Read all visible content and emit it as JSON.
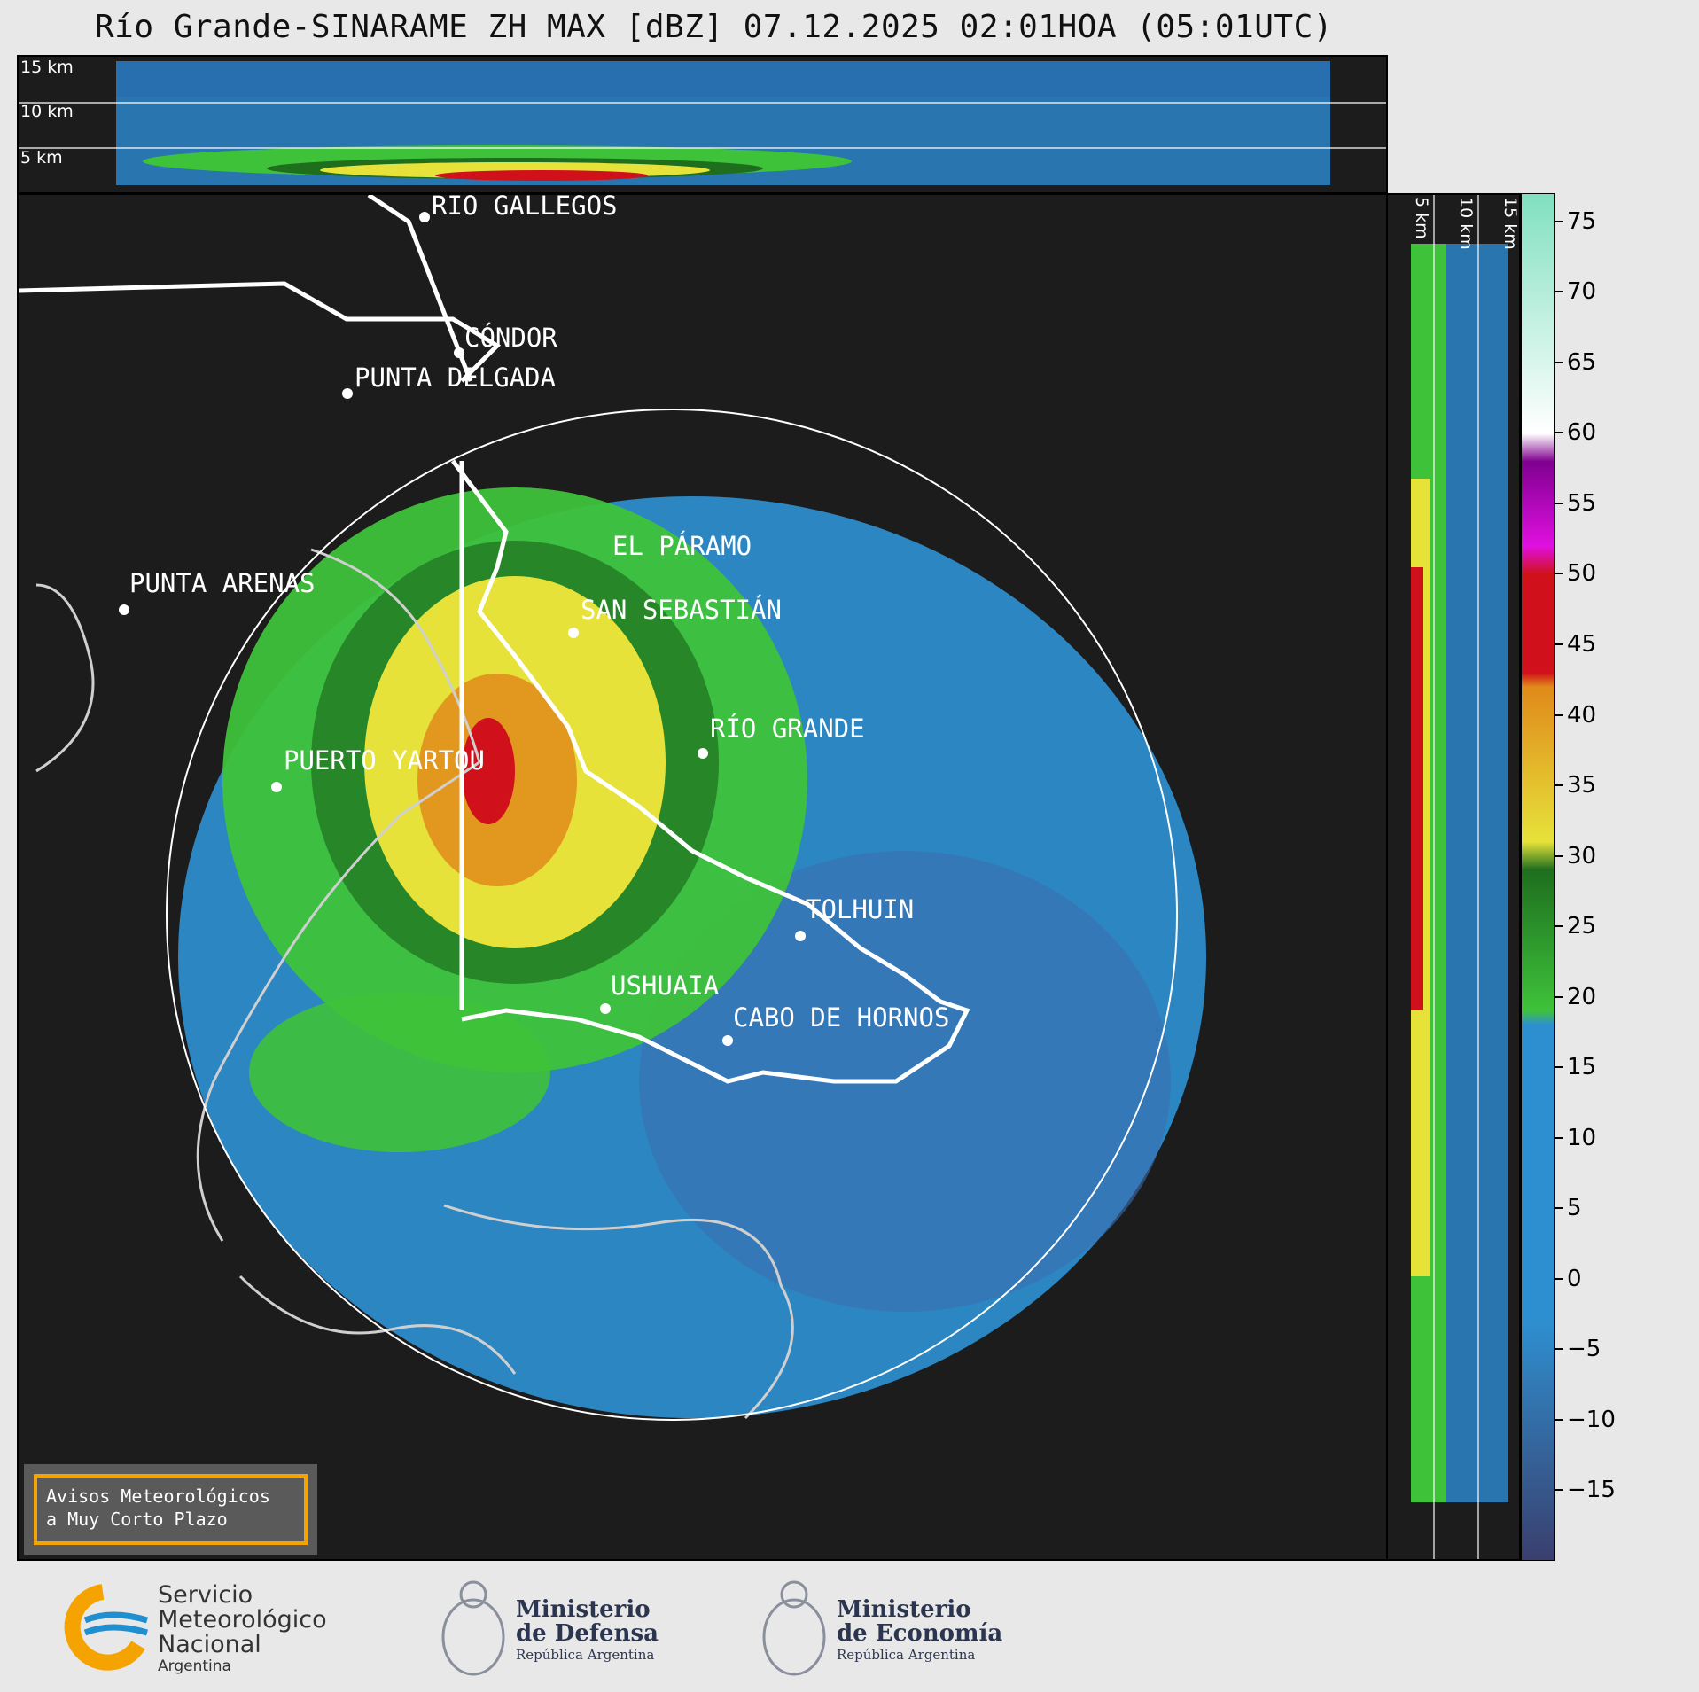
{
  "title": "Río Grande-SINARAME ZH MAX [dBZ] 07.12.2025 02:01HOA (05:01UTC)",
  "top_panel": {
    "altitudes": [
      "15 km",
      "10 km",
      "5 km"
    ]
  },
  "side_panel": {
    "altitudes": [
      "5 km",
      "10 km",
      "15 km"
    ]
  },
  "cities": [
    {
      "name": "RÍO GALLEGOS"
    },
    {
      "name": "CÓNDOR"
    },
    {
      "name": "PUNTA DELGADA"
    },
    {
      "name": "EL PÁRAMO"
    },
    {
      "name": "PUNTA ARENAS"
    },
    {
      "name": "SAN SEBASTIÁN"
    },
    {
      "name": "RÍO GRANDE"
    },
    {
      "name": "PUERTO YARTOU"
    },
    {
      "name": "TOLHUIN"
    },
    {
      "name": "USHUAIA"
    },
    {
      "name": "CABO DE HORNOS"
    }
  ],
  "colorbar": {
    "unit": "dBZ",
    "min": -20,
    "max": 77,
    "ticks": [
      "75",
      "70",
      "65",
      "60",
      "55",
      "50",
      "45",
      "40",
      "35",
      "30",
      "25",
      "20",
      "15",
      "10",
      "5",
      "0",
      "−5",
      "−10",
      "−15"
    ],
    "tick_values": [
      75,
      70,
      65,
      60,
      55,
      50,
      45,
      40,
      35,
      30,
      25,
      20,
      15,
      10,
      5,
      0,
      -5,
      -10,
      -15
    ],
    "colors": {
      "low": "#3a3f6e",
      "blue": "#2e8fd0",
      "green": "#3ec23a",
      "darkgreen": "#1e6e1e",
      "yellow": "#e6e23a",
      "orange": "#e08a1a",
      "red": "#d0101a",
      "magenta": "#e010e0",
      "purple": "#800090",
      "white": "#ffffff",
      "mint": "#80e0c0"
    }
  },
  "alert": {
    "line1": "Avisos Meteorológicos",
    "line2": "a Muy Corto Plazo"
  },
  "logos": {
    "smn_line1": "Servicio",
    "smn_line2": "Meteorológico",
    "smn_line3": "Nacional",
    "smn_line4": "Argentina",
    "defensa_line1": "Ministerio",
    "defensa_line2": "de Defensa",
    "defensa_line3": "República Argentina",
    "economia_line1": "Ministerio",
    "economia_line2": "de Economía",
    "economia_line3": "República Argentina"
  }
}
